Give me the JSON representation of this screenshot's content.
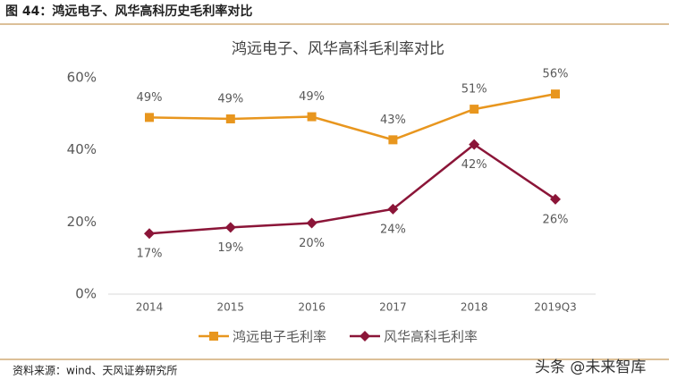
{
  "header": {
    "title": "图 44：鸿远电子、风华高科历史毛利率对比"
  },
  "chart_data": {
    "type": "line",
    "title": "鸿远电子、风华高科毛利率对比",
    "categories": [
      "2014",
      "2015",
      "2016",
      "2017",
      "2018",
      "2019Q3"
    ],
    "series": [
      {
        "name": "鸿远电子毛利率",
        "color": "#e8961e",
        "marker": "square",
        "values": [
          49,
          48.6,
          49.2,
          42.8,
          51.3,
          55.5
        ],
        "value_labels": [
          "49%",
          "49%",
          "49%",
          "43%",
          "51%",
          "56%"
        ]
      },
      {
        "name": "风华高科毛利率",
        "color": "#8b1538",
        "marker": "diamond",
        "values": [
          16.8,
          18.5,
          19.7,
          23.6,
          41.5,
          26.3
        ],
        "value_labels": [
          "17%",
          "19%",
          "20%",
          "24%",
          "42%",
          "26%"
        ]
      }
    ],
    "ylim": [
      0,
      60
    ],
    "yticks": [
      {
        "value": 0,
        "label": "0%"
      },
      {
        "value": 20,
        "label": "20%"
      },
      {
        "value": 40,
        "label": "40%"
      },
      {
        "value": 60,
        "label": "60%"
      }
    ],
    "legend": "bottom"
  },
  "footer": {
    "source": "资料来源：wind、天风证券研究所",
    "watermark": "头条 @未来智库"
  }
}
